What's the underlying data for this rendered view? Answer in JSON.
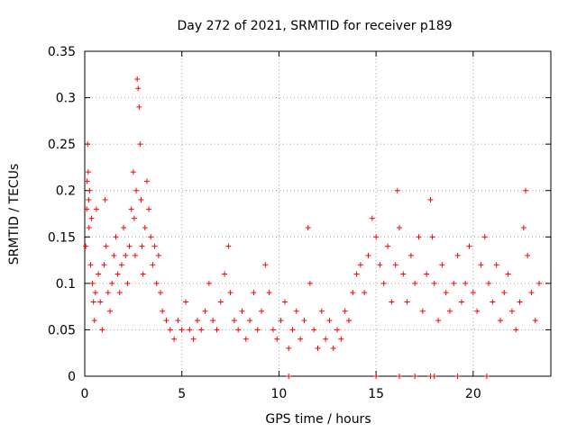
{
  "chart_data": {
    "type": "scatter",
    "title": "Day 272 of 2021, SRMTID for receiver p189",
    "xlabel": "GPS time / hours",
    "ylabel": "SRMTID / TECUs",
    "xlim": [
      0,
      24
    ],
    "ylim": [
      0,
      0.35
    ],
    "xticks": [
      0,
      5,
      10,
      15,
      20
    ],
    "xtick_labels": [
      "0",
      "5",
      "10",
      "15",
      "20"
    ],
    "yticks": [
      0,
      0.05,
      0.1,
      0.15,
      0.2,
      0.25,
      0.3,
      0.35
    ],
    "ytick_labels": [
      "0",
      "0.05",
      "0.1",
      "0.15",
      "0.2",
      "0.25",
      "0.3",
      "0.35"
    ],
    "grid": true,
    "marker": "+",
    "color": "#ff0000",
    "series": [
      {
        "name": "SRMTID",
        "points": [
          [
            0.05,
            0.14
          ],
          [
            0.1,
            0.18
          ],
          [
            0.12,
            0.21
          ],
          [
            0.15,
            0.25
          ],
          [
            0.18,
            0.22
          ],
          [
            0.2,
            0.19
          ],
          [
            0.22,
            0.16
          ],
          [
            0.25,
            0.2
          ],
          [
            0.3,
            0.12
          ],
          [
            0.35,
            0.17
          ],
          [
            0.4,
            0.1
          ],
          [
            0.45,
            0.08
          ],
          [
            0.5,
            0.06
          ],
          [
            0.55,
            0.09
          ],
          [
            0.6,
            0.18
          ],
          [
            0.7,
            0.11
          ],
          [
            0.8,
            0.08
          ],
          [
            0.9,
            0.05
          ],
          [
            1.0,
            0.12
          ],
          [
            1.05,
            0.19
          ],
          [
            1.1,
            0.14
          ],
          [
            1.2,
            0.09
          ],
          [
            1.3,
            0.07
          ],
          [
            1.4,
            0.1
          ],
          [
            1.5,
            0.13
          ],
          [
            1.6,
            0.15
          ],
          [
            1.7,
            0.11
          ],
          [
            1.8,
            0.09
          ],
          [
            1.9,
            0.12
          ],
          [
            2.0,
            0.16
          ],
          [
            2.1,
            0.13
          ],
          [
            2.2,
            0.1
          ],
          [
            2.3,
            0.14
          ],
          [
            2.4,
            0.18
          ],
          [
            2.5,
            0.22
          ],
          [
            2.55,
            0.17
          ],
          [
            2.6,
            0.13
          ],
          [
            2.65,
            0.2
          ],
          [
            2.7,
            0.32
          ],
          [
            2.75,
            0.31
          ],
          [
            2.8,
            0.29
          ],
          [
            2.85,
            0.25
          ],
          [
            2.9,
            0.19
          ],
          [
            2.95,
            0.14
          ],
          [
            3.0,
            0.11
          ],
          [
            3.1,
            0.16
          ],
          [
            3.2,
            0.21
          ],
          [
            3.3,
            0.18
          ],
          [
            3.4,
            0.15
          ],
          [
            3.5,
            0.12
          ],
          [
            3.6,
            0.14
          ],
          [
            3.7,
            0.1
          ],
          [
            3.8,
            0.13
          ],
          [
            3.9,
            0.09
          ],
          [
            4.0,
            0.07
          ],
          [
            4.2,
            0.06
          ],
          [
            4.4,
            0.05
          ],
          [
            4.6,
            0.04
          ],
          [
            4.8,
            0.06
          ],
          [
            5.0,
            0.05
          ],
          [
            5.2,
            0.08
          ],
          [
            5.4,
            0.05
          ],
          [
            5.6,
            0.04
          ],
          [
            5.8,
            0.06
          ],
          [
            6.0,
            0.05
          ],
          [
            6.2,
            0.07
          ],
          [
            6.4,
            0.1
          ],
          [
            6.6,
            0.06
          ],
          [
            6.8,
            0.05
          ],
          [
            7.0,
            0.08
          ],
          [
            7.2,
            0.11
          ],
          [
            7.4,
            0.14
          ],
          [
            7.5,
            0.09
          ],
          [
            7.7,
            0.06
          ],
          [
            7.9,
            0.05
          ],
          [
            8.1,
            0.07
          ],
          [
            8.3,
            0.04
          ],
          [
            8.5,
            0.06
          ],
          [
            8.7,
            0.09
          ],
          [
            8.9,
            0.05
          ],
          [
            9.1,
            0.07
          ],
          [
            9.3,
            0.12
          ],
          [
            9.5,
            0.09
          ],
          [
            9.7,
            0.05
          ],
          [
            9.9,
            0.04
          ],
          [
            10.1,
            0.06
          ],
          [
            10.3,
            0.08
          ],
          [
            10.5,
            0.03
          ],
          [
            10.7,
            0.05
          ],
          [
            10.9,
            0.07
          ],
          [
            11.1,
            0.04
          ],
          [
            11.3,
            0.06
          ],
          [
            11.5,
            0.16
          ],
          [
            11.6,
            0.1
          ],
          [
            11.8,
            0.05
          ],
          [
            12.0,
            0.03
          ],
          [
            12.2,
            0.07
          ],
          [
            12.4,
            0.04
          ],
          [
            12.6,
            0.06
          ],
          [
            12.8,
            0.03
          ],
          [
            13.0,
            0.05
          ],
          [
            13.2,
            0.04
          ],
          [
            13.4,
            0.07
          ],
          [
            13.6,
            0.06
          ],
          [
            13.8,
            0.09
          ],
          [
            14.0,
            0.11
          ],
          [
            14.2,
            0.12
          ],
          [
            14.4,
            0.09
          ],
          [
            14.6,
            0.13
          ],
          [
            14.8,
            0.17
          ],
          [
            15.0,
            0.15
          ],
          [
            15.2,
            0.12
          ],
          [
            15.4,
            0.1
          ],
          [
            15.6,
            0.14
          ],
          [
            15.8,
            0.08
          ],
          [
            16.0,
            0.12
          ],
          [
            16.1,
            0.2
          ],
          [
            16.2,
            0.16
          ],
          [
            16.4,
            0.11
          ],
          [
            16.6,
            0.08
          ],
          [
            16.8,
            0.13
          ],
          [
            17.0,
            0.1
          ],
          [
            17.2,
            0.15
          ],
          [
            17.4,
            0.07
          ],
          [
            17.6,
            0.11
          ],
          [
            17.8,
            0.19
          ],
          [
            17.9,
            0.15
          ],
          [
            18.0,
            0.1
          ],
          [
            18.2,
            0.06
          ],
          [
            18.4,
            0.12
          ],
          [
            18.6,
            0.09
          ],
          [
            18.8,
            0.07
          ],
          [
            19.0,
            0.1
          ],
          [
            19.2,
            0.13
          ],
          [
            19.4,
            0.08
          ],
          [
            19.6,
            0.1
          ],
          [
            19.8,
            0.14
          ],
          [
            20.0,
            0.09
          ],
          [
            20.2,
            0.07
          ],
          [
            20.4,
            0.12
          ],
          [
            20.6,
            0.15
          ],
          [
            20.8,
            0.1
          ],
          [
            21.0,
            0.08
          ],
          [
            21.2,
            0.12
          ],
          [
            21.4,
            0.06
          ],
          [
            21.6,
            0.09
          ],
          [
            21.8,
            0.11
          ],
          [
            22.0,
            0.07
          ],
          [
            22.2,
            0.05
          ],
          [
            22.4,
            0.08
          ],
          [
            22.6,
            0.16
          ],
          [
            22.7,
            0.2
          ],
          [
            22.8,
            0.13
          ],
          [
            23.0,
            0.09
          ],
          [
            23.2,
            0.06
          ],
          [
            23.4,
            0.1
          ],
          [
            15.0,
            0.0
          ],
          [
            16.2,
            0.0
          ],
          [
            17.0,
            0.0
          ],
          [
            17.8,
            0.0
          ],
          [
            18.0,
            0.0
          ],
          [
            19.2,
            0.0
          ],
          [
            20.7,
            0.0
          ],
          [
            10.5,
            0.0
          ]
        ]
      }
    ]
  }
}
